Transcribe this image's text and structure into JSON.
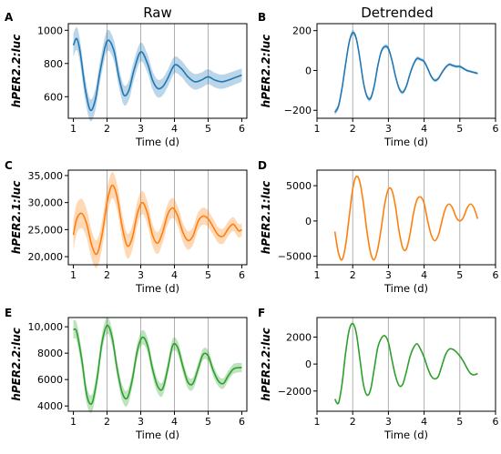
{
  "column_titles": [
    "Raw",
    "Detrended"
  ],
  "chart_data": [
    {
      "panel": "A",
      "type": "line",
      "title": "",
      "xlabel": "Time (d)",
      "ylabel": "hPER2.2:luc",
      "xlim": [
        0.85,
        6.15
      ],
      "ylim": [
        470,
        1040
      ],
      "xticks": [
        1,
        2,
        3,
        4,
        5,
        6
      ],
      "yticks": [
        600,
        800,
        1000
      ],
      "ytick_labels": [
        "600",
        "800",
        "1000"
      ],
      "vlines": [
        2,
        3,
        4,
        5
      ],
      "grid": false,
      "color": "#1f77b4",
      "band": true,
      "band_width": [
        40,
        70
      ],
      "series": [
        {
          "x": [
            1.0,
            1.1,
            1.2,
            1.35,
            1.5,
            1.65,
            1.8,
            2.0,
            2.2,
            2.35,
            2.5,
            2.65,
            2.8,
            3.0,
            3.2,
            3.35,
            3.5,
            3.65,
            3.8,
            4.0,
            4.2,
            4.4,
            4.6,
            4.8,
            5.0,
            5.2,
            5.4,
            5.6,
            5.8,
            6.0
          ],
          "y": [
            910,
            950,
            870,
            650,
            520,
            580,
            760,
            935,
            880,
            720,
            610,
            640,
            760,
            870,
            800,
            700,
            650,
            660,
            710,
            790,
            770,
            720,
            690,
            700,
            720,
            700,
            690,
            700,
            715,
            730
          ]
        }
      ]
    },
    {
      "panel": "B",
      "type": "line",
      "title": "",
      "xlabel": "Time (d)",
      "ylabel": "hPER2.2:luc",
      "xlim": [
        1.0,
        6.0
      ],
      "ylim": [
        -240,
        235
      ],
      "xticks": [
        1,
        2,
        3,
        4,
        5,
        6
      ],
      "yticks": [
        -200,
        0,
        200
      ],
      "ytick_labels": [
        "−200",
        "0",
        "200"
      ],
      "vlines": [
        2,
        3,
        4,
        5
      ],
      "grid": false,
      "color": "#1f77b4",
      "band": true,
      "band_width": [
        6,
        14
      ],
      "series": [
        {
          "x": [
            1.5,
            1.6,
            1.7,
            1.8,
            1.9,
            2.0,
            2.1,
            2.2,
            2.3,
            2.4,
            2.5,
            2.6,
            2.7,
            2.8,
            2.9,
            3.0,
            3.1,
            3.2,
            3.3,
            3.4,
            3.5,
            3.6,
            3.7,
            3.8,
            3.9,
            4.0,
            4.1,
            4.2,
            4.3,
            4.4,
            4.5,
            4.6,
            4.7,
            4.8,
            4.9,
            5.0,
            5.1,
            5.2,
            5.3,
            5.4,
            5.5
          ],
          "y": [
            -210,
            -180,
            -90,
            30,
            140,
            190,
            160,
            60,
            -60,
            -130,
            -140,
            -80,
            20,
            95,
            120,
            110,
            50,
            -30,
            -90,
            -110,
            -80,
            -20,
            30,
            60,
            55,
            45,
            10,
            -30,
            -50,
            -40,
            -10,
            15,
            30,
            25,
            20,
            20,
            10,
            0,
            -5,
            -10,
            -15
          ]
        }
      ]
    },
    {
      "panel": "C",
      "type": "line",
      "title": "",
      "xlabel": "Time (d)",
      "ylabel": "hPER2.1:luc",
      "xlim": [
        0.85,
        6.15
      ],
      "ylim": [
        18500,
        36000
      ],
      "xticks": [
        1,
        2,
        3,
        4,
        5,
        6
      ],
      "yticks": [
        20000,
        25000,
        30000,
        35000
      ],
      "ytick_labels": [
        "20,000",
        "25,000",
        "30,000",
        "35,000"
      ],
      "vlines": [
        2,
        3,
        4,
        5
      ],
      "grid": false,
      "color": "#ff7f0e",
      "band": true,
      "band_width": [
        1200,
        2800
      ],
      "series": [
        {
          "x": [
            1.0,
            1.1,
            1.25,
            1.4,
            1.55,
            1.7,
            1.85,
            2.0,
            2.15,
            2.3,
            2.45,
            2.6,
            2.75,
            2.9,
            3.05,
            3.2,
            3.35,
            3.5,
            3.65,
            3.8,
            3.95,
            4.1,
            4.25,
            4.4,
            4.55,
            4.7,
            4.85,
            5.0,
            5.15,
            5.3,
            5.45,
            5.6,
            5.75,
            5.9,
            6.0
          ],
          "y": [
            24000,
            27000,
            28000,
            26000,
            22000,
            20500,
            24000,
            30000,
            33200,
            31000,
            25500,
            22000,
            23500,
            28000,
            30000,
            28000,
            24000,
            22500,
            24500,
            27800,
            29000,
            27500,
            24500,
            23000,
            23800,
            26500,
            27500,
            27000,
            25500,
            24000,
            23800,
            25200,
            26000,
            24800,
            25000
          ]
        }
      ]
    },
    {
      "panel": "D",
      "type": "line",
      "title": "",
      "xlabel": "Time (d)",
      "ylabel": "hPER2.1:luc",
      "xlim": [
        1.0,
        6.0
      ],
      "ylim": [
        -6200,
        7200
      ],
      "xticks": [
        1,
        2,
        3,
        4,
        5,
        6
      ],
      "yticks": [
        -5000,
        0,
        5000
      ],
      "ytick_labels": [
        "−5000",
        "0",
        "5000"
      ],
      "vlines": [
        2,
        3,
        4,
        5
      ],
      "grid": false,
      "color": "#ff7f0e",
      "band": false,
      "series": [
        {
          "x": [
            1.5,
            1.6,
            1.7,
            1.8,
            1.9,
            2.0,
            2.1,
            2.2,
            2.3,
            2.4,
            2.5,
            2.6,
            2.7,
            2.8,
            2.9,
            3.0,
            3.1,
            3.2,
            3.3,
            3.4,
            3.5,
            3.6,
            3.7,
            3.8,
            3.9,
            4.0,
            4.1,
            4.2,
            4.3,
            4.4,
            4.5,
            4.6,
            4.7,
            4.8,
            4.9,
            5.0,
            5.1,
            5.2,
            5.3,
            5.4,
            5.5
          ],
          "y": [
            -1500,
            -4500,
            -5500,
            -3500,
            500,
            4500,
            6300,
            5500,
            2500,
            -1500,
            -4500,
            -5500,
            -4000,
            -1000,
            2500,
            4500,
            4300,
            2000,
            -1500,
            -3800,
            -4000,
            -2000,
            1000,
            3000,
            3400,
            2500,
            0,
            -2000,
            -2800,
            -2000,
            0,
            1800,
            2400,
            1800,
            500,
            0,
            500,
            1800,
            2400,
            1800,
            300
          ]
        }
      ]
    },
    {
      "panel": "E",
      "type": "line",
      "title": "",
      "xlabel": "Time (d)",
      "ylabel": "hPER2.2:luc",
      "xlim": [
        0.85,
        6.15
      ],
      "ylim": [
        3600,
        10700
      ],
      "xticks": [
        1,
        2,
        3,
        4,
        5,
        6
      ],
      "yticks": [
        4000,
        6000,
        8000,
        10000
      ],
      "ytick_labels": [
        "4000",
        "6000",
        "8000",
        "10,000"
      ],
      "vlines": [
        2,
        3,
        4,
        5
      ],
      "grid": false,
      "color": "#2ca02c",
      "band": true,
      "band_width": [
        350,
        700
      ],
      "series": [
        {
          "x": [
            1.0,
            1.1,
            1.25,
            1.4,
            1.55,
            1.7,
            1.85,
            2.0,
            2.15,
            2.3,
            2.45,
            2.6,
            2.75,
            2.9,
            3.05,
            3.2,
            3.35,
            3.5,
            3.65,
            3.8,
            3.95,
            4.1,
            4.25,
            4.4,
            4.55,
            4.7,
            4.85,
            5.0,
            5.15,
            5.3,
            5.45,
            5.6,
            5.75,
            5.9,
            6.0
          ],
          "y": [
            9800,
            9600,
            7500,
            4800,
            4200,
            6000,
            8800,
            10100,
            9200,
            6800,
            5000,
            4600,
            6000,
            8200,
            9200,
            8600,
            6800,
            5500,
            5300,
            6800,
            8600,
            8400,
            7000,
            5800,
            5700,
            6800,
            7900,
            7800,
            6700,
            5900,
            5700,
            6300,
            6800,
            6900,
            6900
          ]
        }
      ]
    },
    {
      "panel": "F",
      "type": "line",
      "title": "",
      "xlabel": "Time (d)",
      "ylabel": "hPER2.2:luc",
      "xlim": [
        1.0,
        6.0
      ],
      "ylim": [
        -3500,
        3450
      ],
      "xticks": [
        1,
        2,
        3,
        4,
        5,
        6
      ],
      "yticks": [
        -2000,
        0,
        2000
      ],
      "ytick_labels": [
        "−2000",
        "0",
        "2000"
      ],
      "vlines": [
        2,
        3,
        4,
        5
      ],
      "grid": false,
      "color": "#2ca02c",
      "band": false,
      "series": [
        {
          "x": [
            1.5,
            1.6,
            1.7,
            1.8,
            1.9,
            2.0,
            2.1,
            2.2,
            2.3,
            2.4,
            2.5,
            2.6,
            2.7,
            2.8,
            2.9,
            3.0,
            3.1,
            3.2,
            3.3,
            3.4,
            3.5,
            3.6,
            3.7,
            3.8,
            3.9,
            4.0,
            4.1,
            4.2,
            4.3,
            4.4,
            4.5,
            4.6,
            4.7,
            4.8,
            4.9,
            5.0,
            5.1,
            5.2,
            5.3,
            5.4,
            5.5
          ],
          "y": [
            -2600,
            -2900,
            -1500,
            800,
            2500,
            3000,
            2300,
            400,
            -1500,
            -2300,
            -1900,
            -400,
            1200,
            1900,
            2100,
            1600,
            300,
            -900,
            -1600,
            -1500,
            -600,
            500,
            1200,
            1500,
            1100,
            500,
            -300,
            -900,
            -1100,
            -900,
            -100,
            700,
            1100,
            1100,
            900,
            600,
            200,
            -300,
            -700,
            -800,
            -700
          ]
        }
      ]
    }
  ]
}
